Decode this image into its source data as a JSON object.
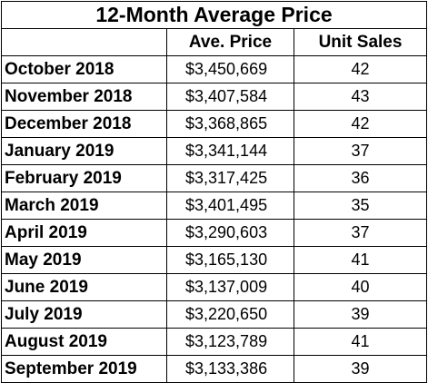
{
  "title": "12-Month Average Price",
  "columns": {
    "month": "",
    "price": "Ave. Price",
    "sales": "Unit Sales"
  },
  "rows": [
    {
      "month": "October 2018",
      "price": "$3,450,669",
      "sales": "42"
    },
    {
      "month": "November 2018",
      "price": "$3,407,584",
      "sales": "43"
    },
    {
      "month": "December 2018",
      "price": "$3,368,865",
      "sales": "42"
    },
    {
      "month": "January 2019",
      "price": "$3,341,144",
      "sales": "37"
    },
    {
      "month": "February 2019",
      "price": "$3,317,425",
      "sales": "36"
    },
    {
      "month": "March 2019",
      "price": "$3,401,495",
      "sales": "35"
    },
    {
      "month": "April 2019",
      "price": "$3,290,603",
      "sales": "37"
    },
    {
      "month": "May 2019",
      "price": "$3,165,130",
      "sales": "41"
    },
    {
      "month": "June 2019",
      "price": "$3,137,009",
      "sales": "40"
    },
    {
      "month": "July 2019",
      "price": "$3,220,650",
      "sales": "39"
    },
    {
      "month": "August 2019",
      "price": "$3,123,789",
      "sales": "41"
    },
    {
      "month": "September 2019",
      "price": "$3,133,386",
      "sales": "39"
    }
  ]
}
